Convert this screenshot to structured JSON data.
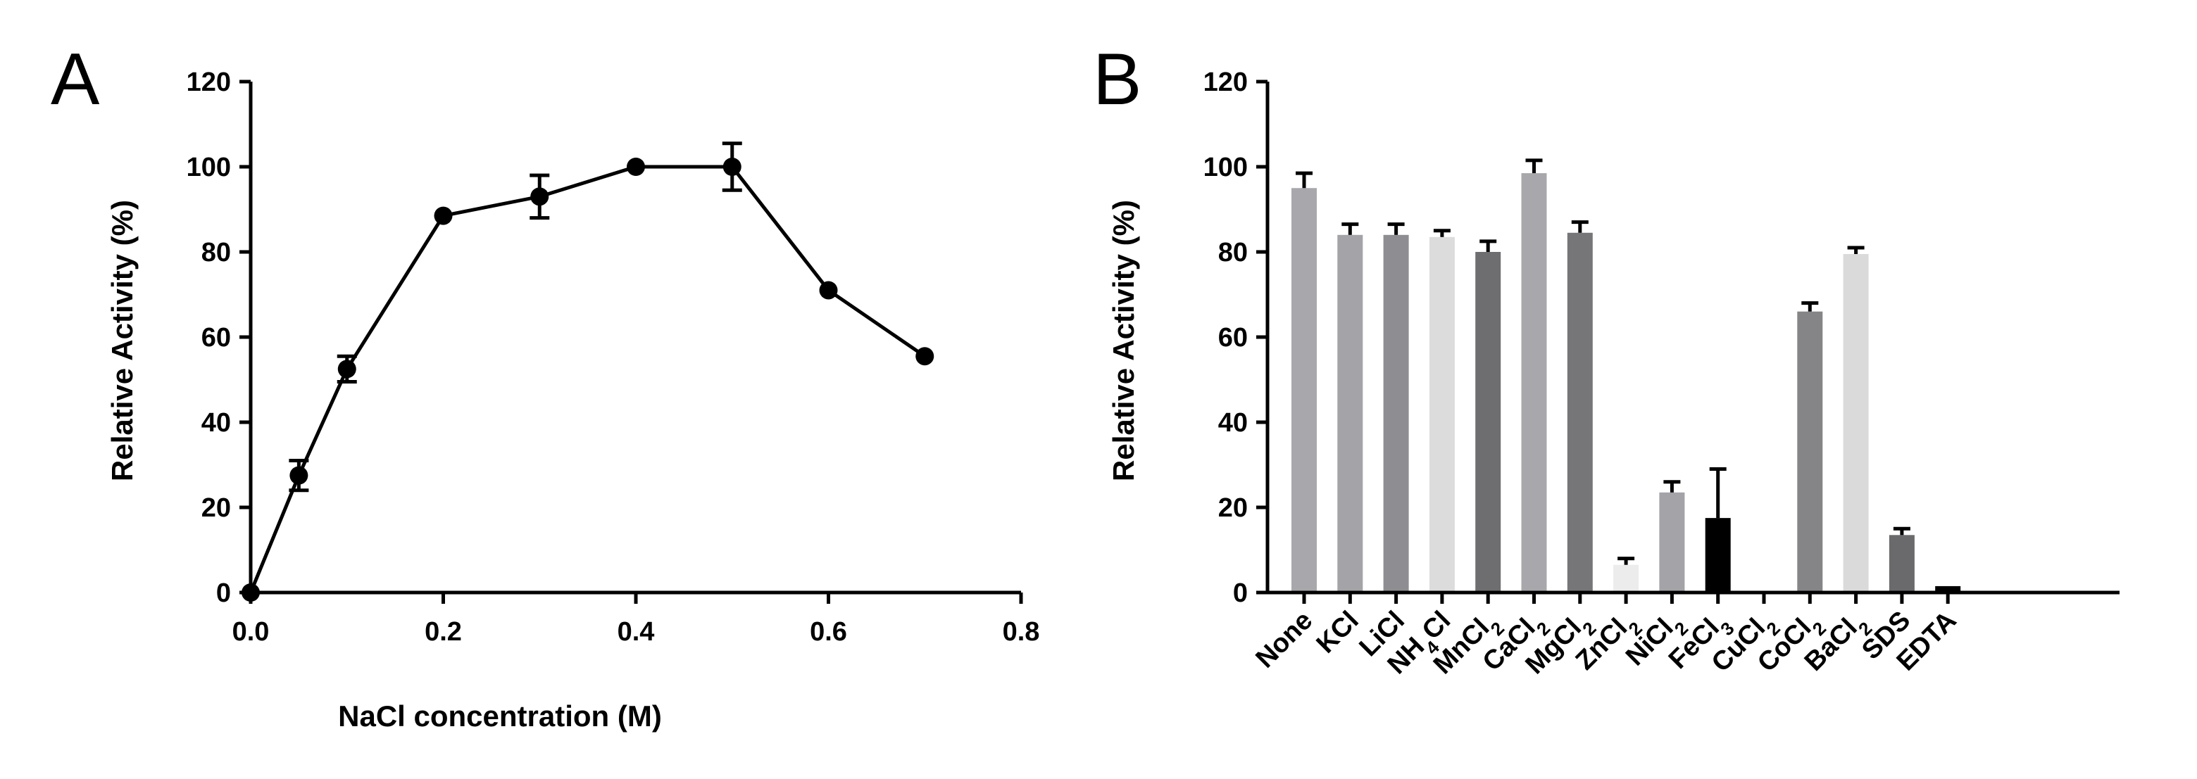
{
  "chart_data": [
    {
      "panel": "A",
      "type": "line",
      "xlabel": "NaCl concentration (M)",
      "ylabel": "Relative Activity (%)",
      "xlim": [
        0,
        0.8
      ],
      "ylim": [
        0,
        120
      ],
      "x_ticks": [
        "0.0",
        "0.2",
        "0.4",
        "0.6",
        "0.8"
      ],
      "y_ticks": [
        "0",
        "20",
        "40",
        "60",
        "80",
        "100",
        "120"
      ],
      "grid": false,
      "series": [
        {
          "name": "NaCl",
          "color": "#000000",
          "x": [
            0,
            0.05,
            0.1,
            0.2,
            0.3,
            0.4,
            0.5,
            0.6,
            0.7
          ],
          "y": [
            0,
            27.5,
            52.5,
            88.5,
            93,
            100,
            100,
            71,
            55.5
          ],
          "error": [
            0.5,
            3.5,
            3,
            1,
            5,
            1,
            5.5,
            1,
            1
          ]
        }
      ]
    },
    {
      "panel": "B",
      "type": "bar",
      "xlabel": "",
      "ylabel": "Relative Activity (%)",
      "ylim": [
        0,
        120
      ],
      "y_ticks": [
        "0",
        "20",
        "40",
        "60",
        "80",
        "100",
        "120"
      ],
      "grid": false,
      "categories": [
        {
          "base": "None",
          "sub": ""
        },
        {
          "base": "KCl",
          "sub": ""
        },
        {
          "base": "LiCl",
          "sub": ""
        },
        {
          "base": "NH",
          "sub": "4",
          "tail": "Cl"
        },
        {
          "base": "MnCl",
          "sub": "2"
        },
        {
          "base": "CaCl",
          "sub": "2"
        },
        {
          "base": "MgCl",
          "sub": "2"
        },
        {
          "base": "ZnCl",
          "sub": "2"
        },
        {
          "base": "NiCl",
          "sub": "2"
        },
        {
          "base": "FeCl",
          "sub": "3"
        },
        {
          "base": "CuCl",
          "sub": "2"
        },
        {
          "base": "CoCl",
          "sub": "2"
        },
        {
          "base": "BaCl",
          "sub": "2"
        },
        {
          "base": "SDS",
          "sub": ""
        },
        {
          "base": "EDTA",
          "sub": ""
        }
      ],
      "values": [
        95,
        84,
        84,
        83.5,
        80,
        98.5,
        84.5,
        6.5,
        23.5,
        17.5,
        0,
        66,
        79.5,
        13.5,
        1.5
      ],
      "errors": [
        3.5,
        2.5,
        2.5,
        1.5,
        2.5,
        3,
        2.5,
        1.5,
        2.5,
        11.5,
        0,
        2,
        1.5,
        1.5,
        0
      ],
      "colors": [
        "#a8a8ac",
        "#a3a3a8",
        "#8e8e92",
        "#dcdcdc",
        "#6e6e70",
        "#a8a8ac",
        "#767678",
        "#ececec",
        "#a3a3a8",
        "#000000",
        "#ffffff",
        "#858588",
        "#dadada",
        "#6a6a6c",
        "#000000"
      ]
    }
  ],
  "labels": {
    "panel_a": "A",
    "panel_b": "B"
  }
}
